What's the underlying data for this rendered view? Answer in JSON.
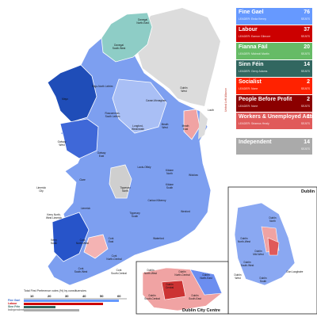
{
  "legend": {
    "parties": [
      {
        "name": "Fine Gael",
        "seats": "76",
        "leader": "LEADER: Enda Kenny",
        "change": "SEATS",
        "color": "#6699ff"
      },
      {
        "name": "Labour",
        "seats": "37",
        "leader": "LEADER: Eamon Gilmore",
        "change": "SEATS",
        "color": "#cc0000"
      },
      {
        "name": "Fianna Fáil",
        "seats": "20",
        "leader": "LEADER: Micheál Martin",
        "change": "SEATS",
        "color": "#66bb66"
      },
      {
        "name": "Sinn Féin",
        "seats": "14",
        "leader": "LEADER: Gerry Adams",
        "change": "SEATS",
        "color": "#326760"
      },
      {
        "name": "Socialist",
        "seats": "2",
        "leader": "LEADER: None",
        "change": "SEATS",
        "color": "#ff2200"
      },
      {
        "name": "People Before Profit",
        "seats": "2",
        "leader": "LEADER: None",
        "change": "SEATS",
        "color": "#8b0000"
      },
      {
        "name": "Workers & Unemployed Action",
        "seats": "1",
        "leader": "LEADER: Séamus Healy",
        "change": "SEATS",
        "color": "#e05a5a"
      },
      {
        "name": "Independent",
        "seats": "14",
        "leader": "",
        "change": "SEATS",
        "color": "#aaaaaa"
      }
    ],
    "sidebar": "United Left Alliance"
  },
  "constituencies": [
    {
      "name": "Donegal\nNorth-East"
    },
    {
      "name": "Donegal\nSouth-West"
    },
    {
      "name": "Sligo-North Leitrim"
    },
    {
      "name": "Cavan-Monaghan"
    },
    {
      "name": "Louth"
    },
    {
      "name": "Mayo"
    },
    {
      "name": "Roscommon-\nSouth Leitrim"
    },
    {
      "name": "Longford-\nWestmeath"
    },
    {
      "name": "Meath\nWest"
    },
    {
      "name": "Meath\nEast"
    },
    {
      "name": "Dublin\nWest"
    },
    {
      "name": "Galway\nWest"
    },
    {
      "name": "Galway\nEast"
    },
    {
      "name": "Laois-Offaly"
    },
    {
      "name": "Kildare\nNorth"
    },
    {
      "name": "Kildare\nSouth"
    },
    {
      "name": "Wicklow"
    },
    {
      "name": "Clare"
    },
    {
      "name": "Tipperary\nNorth"
    },
    {
      "name": "Limerick\nCity"
    },
    {
      "name": "Limerick"
    },
    {
      "name": "Carlow-Kilkenny"
    },
    {
      "name": "Kerry North-\nWest Limerick"
    },
    {
      "name": "Tipperary\nSouth"
    },
    {
      "name": "Wexford"
    },
    {
      "name": "Waterford"
    },
    {
      "name": "Kerry\nSouth"
    },
    {
      "name": "Cork\nNorth-West"
    },
    {
      "name": "Cork\nEast"
    },
    {
      "name": "Cork\nNorth-Central"
    },
    {
      "name": "Cork\nSouth-West"
    },
    {
      "name": "Cork\nSouth-Central"
    }
  ],
  "insets": {
    "dublin": {
      "title": "Dublin",
      "labels": [
        "Dublin\nNorth",
        "Dublin\nNorth-West",
        "Dublin\nSouth-West",
        "Dublin\nMid-West",
        "Dublin\nSouth",
        "Dún Laoghaire",
        "Dublin\nWest"
      ]
    },
    "dublin_city": {
      "title": "Dublin City Centre",
      "labels": [
        "Dublin\nNorth-West",
        "Dublin\nNorth-Central",
        "Dublin\nNorth-East",
        "Dublin\nCentral",
        "Dublin\nSouth-Central",
        "Dublin\nSouth-East"
      ]
    }
  },
  "chart_data": {
    "type": "bar",
    "title": "Total First Preference votes (%) by constituencies",
    "x_ticks": [
      "10",
      "20",
      "30",
      "40",
      "50",
      "60"
    ],
    "rows": [
      "Fine Gael",
      "Labour",
      "Sinn Féin",
      "Independent"
    ]
  }
}
